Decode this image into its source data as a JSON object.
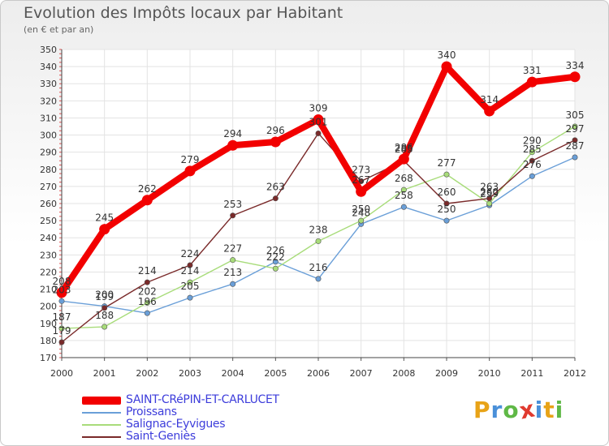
{
  "title": "Evolution des Impôts locaux par Habitant",
  "subtitle": "(en € et par an)",
  "logo": {
    "text": "Proxiti",
    "letters": [
      "P",
      "r",
      "o",
      "x",
      "i",
      "t",
      "i"
    ],
    "colors": [
      "#e8a317",
      "#4a90d9",
      "#5fb846",
      "#e03a2f",
      "#4a90d9",
      "#e8a317",
      "#5fb846"
    ]
  },
  "chart_data": {
    "type": "line",
    "title": "Evolution des Impôts locaux par Habitant",
    "subtitle": "(en € et par an)",
    "xlabel": "",
    "ylabel": "",
    "ylim": [
      170,
      350
    ],
    "yticks": [
      170,
      180,
      190,
      200,
      210,
      220,
      230,
      240,
      250,
      260,
      270,
      280,
      290,
      300,
      310,
      320,
      330,
      340,
      350
    ],
    "x": [
      "2000",
      "2001",
      "2002",
      "2003",
      "2004",
      "2005",
      "2006",
      "2007",
      "2008",
      "2009",
      "2010",
      "2011",
      "2012"
    ],
    "grid": true,
    "legend_position": "bottom-left",
    "series": [
      {
        "name": "Proissans",
        "color": "#6a9fd8",
        "values": [
          203,
          200,
          196,
          205,
          213,
          226,
          216,
          248,
          258,
          250,
          259,
          276,
          287
        ],
        "labels": [
          "203",
          "200",
          "196",
          "205",
          "213",
          "226",
          "216",
          "248",
          "258",
          "250",
          "259",
          "276",
          "287"
        ]
      },
      {
        "name": "Salignac-Eyvigues",
        "color": "#a8dc7a",
        "values": [
          187,
          188,
          202,
          214,
          227,
          222,
          238,
          250,
          268,
          277,
          260,
          290,
          305
        ],
        "labels": [
          "187",
          "188",
          "202",
          "214",
          "227",
          "222",
          "238",
          "250",
          "268",
          "277",
          "260",
          "290",
          "305"
        ]
      },
      {
        "name": "Saint-Geniès",
        "color": "#7a2a2a",
        "values": [
          179,
          199,
          214,
          224,
          253,
          263,
          301,
          273,
          285,
          260,
          263,
          285,
          297
        ],
        "labels": [
          "179",
          "199",
          "214",
          "224",
          "253",
          "263",
          "301",
          "273",
          "285",
          "260",
          "263",
          "285",
          "297"
        ]
      },
      {
        "name": "SAINT-CRéPIN-ET-CARLUCET",
        "color": "#f20000",
        "values": [
          208,
          245,
          262,
          279,
          294,
          296,
          309,
          267,
          286,
          340,
          314,
          331,
          334
        ],
        "labels": [
          "208",
          "245",
          "262",
          "279",
          "294",
          "296",
          "309",
          "267",
          "286",
          "340",
          "314",
          "331",
          "334"
        ]
      }
    ]
  },
  "legend": [
    {
      "label": "SAINT-CRéPIN-ET-CARLUCET",
      "color": "#f20000",
      "weight": "thick"
    },
    {
      "label": "Proissans",
      "color": "#6a9fd8",
      "weight": "thin"
    },
    {
      "label": "Salignac-Eyvigues",
      "color": "#a8dc7a",
      "weight": "thin"
    },
    {
      "label": "Saint-Geniès",
      "color": "#7a2a2a",
      "weight": "thin"
    }
  ]
}
